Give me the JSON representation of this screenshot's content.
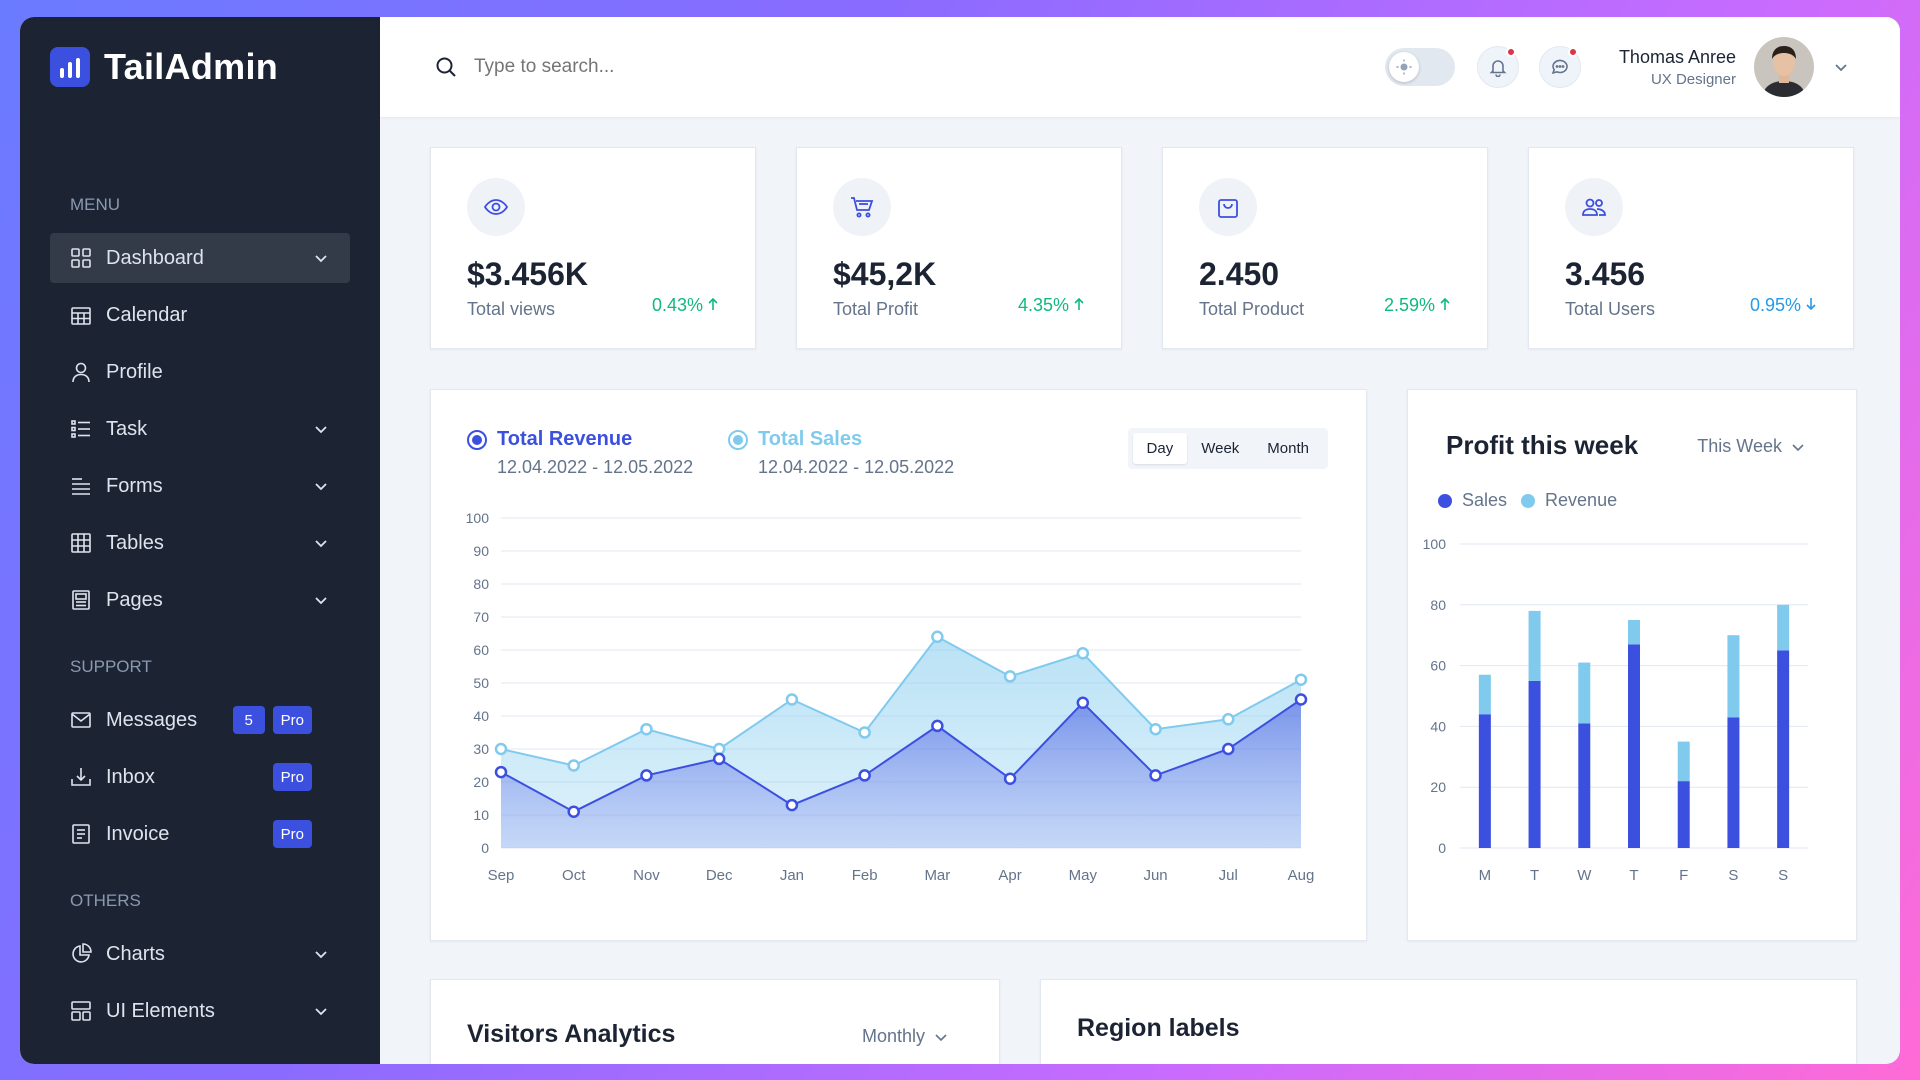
{
  "brand": {
    "name": "TailAdmin"
  },
  "sidebar": {
    "groups": [
      {
        "title": "MENU",
        "items": [
          {
            "label": "Dashboard",
            "icon": "dashboard-icon",
            "active": true,
            "chevron": true
          },
          {
            "label": "Calendar",
            "icon": "calendar-icon"
          },
          {
            "label": "Profile",
            "icon": "user-icon"
          },
          {
            "label": "Task",
            "icon": "task-list-icon",
            "chevron": true
          },
          {
            "label": "Forms",
            "icon": "forms-icon",
            "chevron": true
          },
          {
            "label": "Tables",
            "icon": "table-icon",
            "chevron": true
          },
          {
            "label": "Pages",
            "icon": "pages-icon",
            "chevron": true
          }
        ]
      },
      {
        "title": "SUPPORT",
        "items": [
          {
            "label": "Messages",
            "icon": "mail-icon",
            "badges": [
              "5",
              "Pro"
            ]
          },
          {
            "label": "Inbox",
            "icon": "inbox-icon",
            "badges": [
              "Pro"
            ]
          },
          {
            "label": "Invoice",
            "icon": "invoice-icon",
            "badges": [
              "Pro"
            ]
          }
        ]
      },
      {
        "title": "OTHERS",
        "items": [
          {
            "label": "Charts",
            "icon": "pie-chart-icon",
            "chevron": true
          },
          {
            "label": "UI Elements",
            "icon": "ui-elements-icon",
            "chevron": true
          }
        ]
      }
    ]
  },
  "header": {
    "search_placeholder": "Type to search...",
    "user_name": "Thomas Anree",
    "user_role": "UX Designer"
  },
  "stats": [
    {
      "value": "$3.456K",
      "label": "Total views",
      "change": "0.43%",
      "trend": "up",
      "icon": "eye-icon"
    },
    {
      "value": "$45,2K",
      "label": "Total Profit",
      "change": "4.35%",
      "trend": "up",
      "icon": "cart-icon"
    },
    {
      "value": "2.450",
      "label": "Total Product",
      "change": "2.59%",
      "trend": "up",
      "icon": "bag-icon"
    },
    {
      "value": "3.456",
      "label": "Total Users",
      "change": "0.95%",
      "trend": "down",
      "icon": "users-icon"
    }
  ],
  "revenue_panel": {
    "legend": [
      {
        "title": "Total Revenue",
        "range": "12.04.2022 - 12.05.2022",
        "color": "#3c50e0"
      },
      {
        "title": "Total Sales",
        "range": "12.04.2022 - 12.05.2022",
        "color": "#80caee"
      }
    ],
    "periods": [
      "Day",
      "Week",
      "Month"
    ],
    "active_period": "Day"
  },
  "profit_panel": {
    "title": "Profit this week",
    "dropdown": "This Week",
    "legend": [
      "Sales",
      "Revenue"
    ]
  },
  "visitors_panel": {
    "title": "Visitors Analytics",
    "dropdown": "Monthly"
  },
  "region_panel": {
    "title": "Region labels"
  },
  "colors": {
    "primary": "#3c50e0",
    "secondary": "#80caee",
    "sidebar": "#1c2434",
    "success": "#10b981",
    "info": "#259ae6"
  },
  "chart_data": [
    {
      "type": "area",
      "categories": [
        "Sep",
        "Oct",
        "Nov",
        "Dec",
        "Jan",
        "Feb",
        "Mar",
        "Apr",
        "May",
        "Jun",
        "Jul",
        "Aug"
      ],
      "series": [
        {
          "name": "Total Revenue",
          "values": [
            23,
            11,
            22,
            27,
            13,
            22,
            37,
            21,
            44,
            22,
            30,
            45
          ]
        },
        {
          "name": "Total Sales",
          "values": [
            30,
            25,
            36,
            30,
            45,
            35,
            64,
            52,
            59,
            36,
            39,
            51
          ]
        }
      ],
      "yticks": [
        0,
        10,
        20,
        30,
        40,
        50,
        60,
        70,
        80,
        90,
        100
      ],
      "ylim": [
        0,
        100
      ],
      "grid": true
    },
    {
      "type": "bar",
      "stacked": true,
      "categories": [
        "M",
        "T",
        "W",
        "T",
        "F",
        "S",
        "S"
      ],
      "series": [
        {
          "name": "Sales",
          "values": [
            44,
            55,
            41,
            67,
            22,
            43,
            65
          ]
        },
        {
          "name": "Revenue",
          "values": [
            13,
            23,
            20,
            8,
            13,
            27,
            15
          ]
        }
      ],
      "yticks": [
        0,
        20,
        40,
        60,
        80,
        100
      ],
      "ylim": [
        0,
        100
      ],
      "grid": true
    }
  ]
}
